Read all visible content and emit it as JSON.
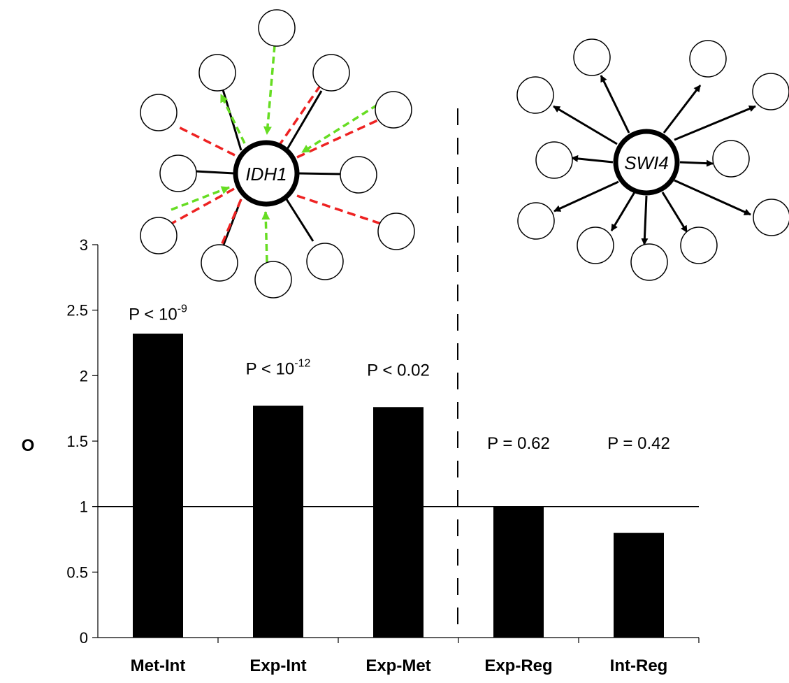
{
  "chart_data": {
    "type": "bar",
    "categories": [
      "Met-Int",
      "Exp-Int",
      "Exp-Met",
      "Exp-Reg",
      "Int-Reg"
    ],
    "values": [
      2.32,
      1.77,
      1.76,
      1.0,
      0.8
    ],
    "ylabel": "O",
    "ylim": [
      0,
      3
    ],
    "yticks": [
      "0",
      "0.5",
      "1",
      "1.5",
      "2",
      "2.5",
      "3"
    ],
    "reference_line": 1,
    "grid": false,
    "annotations": [
      {
        "base": "P < 10",
        "exp": "-9"
      },
      {
        "base": "P < 10",
        "exp": "-12"
      },
      {
        "base": "P < 0.02",
        "exp": ""
      },
      {
        "base": "P = 0.62",
        "exp": ""
      },
      {
        "base": "P = 0.42",
        "exp": ""
      }
    ],
    "bar_color": "#000000"
  },
  "networks": {
    "left_hub": "IDH1",
    "right_hub": "SWI4",
    "colors": {
      "dashed_red": "#ee2222",
      "dashed_green": "#66dd22",
      "solid": "#000000"
    }
  }
}
